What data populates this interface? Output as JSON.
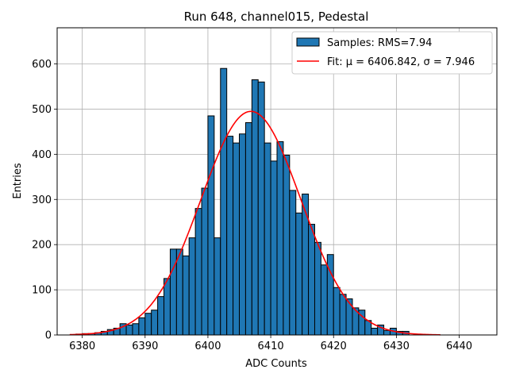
{
  "chart_data": {
    "type": "bar",
    "title": "Run 648, channel015, Pedestal",
    "xlabel": "ADC Counts",
    "ylabel": "Entries",
    "xlim": [
      6376,
      6446
    ],
    "ylim": [
      0,
      680
    ],
    "xticks": [
      6380,
      6390,
      6400,
      6410,
      6420,
      6430,
      6440
    ],
    "yticks": [
      0,
      100,
      200,
      300,
      400,
      500,
      600
    ],
    "grid": true,
    "legend_position": "top-right",
    "histogram": {
      "name": "Samples: RMS=7.94",
      "color": "#1f77b4",
      "edgecolor": "#000000",
      "bin_start": 6379,
      "bin_width": 1,
      "counts": [
        2,
        3,
        3,
        5,
        8,
        12,
        15,
        25,
        22,
        25,
        38,
        48,
        55,
        85,
        125,
        190,
        190,
        175,
        215,
        280,
        325,
        485,
        215,
        590,
        440,
        425,
        445,
        470,
        565,
        560,
        425,
        385,
        428,
        398,
        320,
        270,
        312,
        245,
        205,
        155,
        178,
        105,
        90,
        80,
        60,
        55,
        32,
        15,
        22,
        10,
        15,
        8,
        8
      ]
    },
    "fit": {
      "name": "Fit: μ = 6406.842, σ = 7.946",
      "color": "#ff0000",
      "mu": 6406.842,
      "sigma": 7.946,
      "amplitude": 495,
      "x_range": [
        6378,
        6437
      ]
    }
  }
}
